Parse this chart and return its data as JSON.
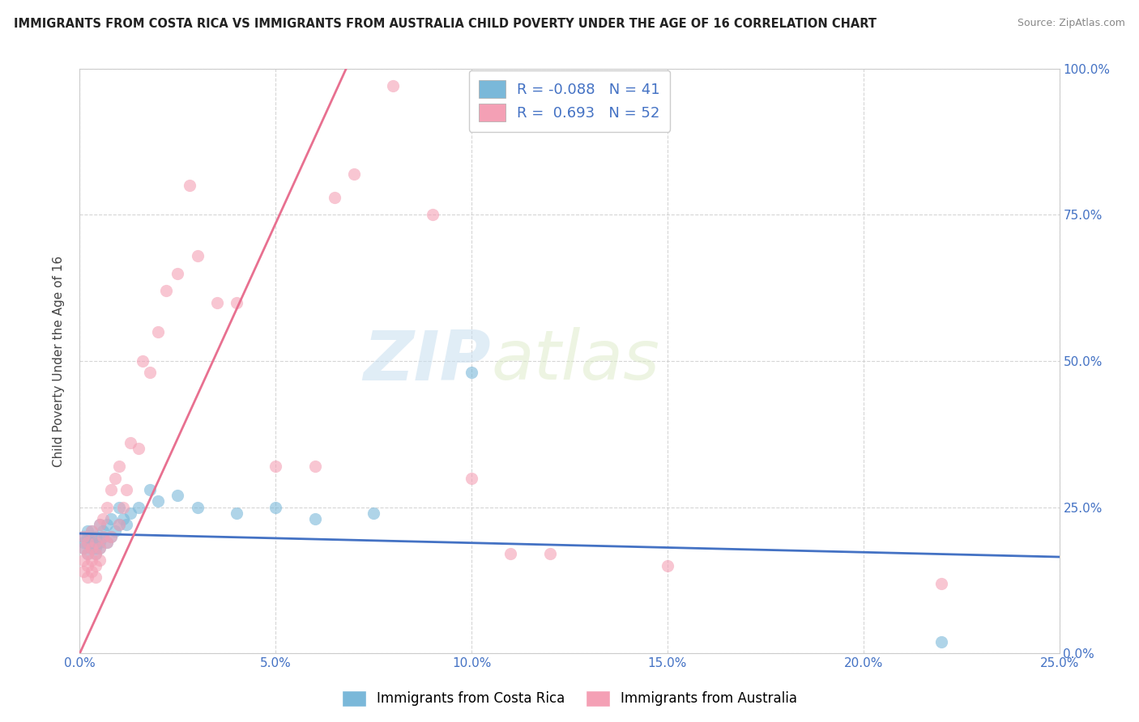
{
  "title": "IMMIGRANTS FROM COSTA RICA VS IMMIGRANTS FROM AUSTRALIA CHILD POVERTY UNDER THE AGE OF 16 CORRELATION CHART",
  "source": "Source: ZipAtlas.com",
  "ylabel": "Child Poverty Under the Age of 16",
  "xlim": [
    0.0,
    0.25
  ],
  "ylim": [
    0.0,
    1.0
  ],
  "xticks": [
    0.0,
    0.05,
    0.1,
    0.15,
    0.2,
    0.25
  ],
  "yticks": [
    0.0,
    0.25,
    0.5,
    0.75,
    1.0
  ],
  "costa_rica_color": "#7ab8d9",
  "australia_color": "#f4a0b5",
  "costa_rica_line_color": "#4472c4",
  "australia_line_color": "#e87090",
  "costa_rica_R": -0.088,
  "costa_rica_N": 41,
  "australia_R": 0.693,
  "australia_N": 52,
  "legend_label_costa_rica": "Immigrants from Costa Rica",
  "legend_label_australia": "Immigrants from Australia",
  "watermark_zip": "ZIP",
  "watermark_atlas": "atlas",
  "background_color": "#ffffff",
  "cr_trend_x0": 0.0,
  "cr_trend_y0": 0.205,
  "cr_trend_x1": 0.25,
  "cr_trend_y1": 0.165,
  "au_trend_x0": 0.0,
  "au_trend_y0": 0.0,
  "au_trend_x1": 0.068,
  "au_trend_y1": 1.0,
  "costa_rica_x": [
    0.001,
    0.001,
    0.001,
    0.002,
    0.002,
    0.002,
    0.002,
    0.003,
    0.003,
    0.003,
    0.003,
    0.004,
    0.004,
    0.004,
    0.004,
    0.005,
    0.005,
    0.005,
    0.006,
    0.006,
    0.007,
    0.007,
    0.008,
    0.008,
    0.009,
    0.01,
    0.01,
    0.011,
    0.012,
    0.013,
    0.015,
    0.018,
    0.02,
    0.025,
    0.03,
    0.04,
    0.05,
    0.06,
    0.075,
    0.1,
    0.22
  ],
  "costa_rica_y": [
    0.18,
    0.19,
    0.2,
    0.17,
    0.19,
    0.2,
    0.21,
    0.18,
    0.19,
    0.2,
    0.21,
    0.17,
    0.18,
    0.19,
    0.2,
    0.18,
    0.19,
    0.22,
    0.2,
    0.21,
    0.19,
    0.22,
    0.2,
    0.23,
    0.21,
    0.22,
    0.25,
    0.23,
    0.22,
    0.24,
    0.25,
    0.28,
    0.26,
    0.27,
    0.25,
    0.24,
    0.25,
    0.23,
    0.24,
    0.48,
    0.02
  ],
  "australia_x": [
    0.001,
    0.001,
    0.001,
    0.001,
    0.002,
    0.002,
    0.002,
    0.002,
    0.003,
    0.003,
    0.003,
    0.003,
    0.004,
    0.004,
    0.004,
    0.004,
    0.005,
    0.005,
    0.005,
    0.006,
    0.006,
    0.007,
    0.007,
    0.008,
    0.008,
    0.009,
    0.01,
    0.01,
    0.011,
    0.012,
    0.013,
    0.015,
    0.016,
    0.018,
    0.02,
    0.022,
    0.025,
    0.028,
    0.03,
    0.035,
    0.04,
    0.05,
    0.06,
    0.065,
    0.07,
    0.08,
    0.09,
    0.1,
    0.11,
    0.12,
    0.15,
    0.22
  ],
  "australia_y": [
    0.14,
    0.16,
    0.18,
    0.2,
    0.13,
    0.15,
    0.17,
    0.19,
    0.14,
    0.16,
    0.18,
    0.21,
    0.13,
    0.15,
    0.17,
    0.19,
    0.16,
    0.18,
    0.22,
    0.2,
    0.23,
    0.19,
    0.25,
    0.2,
    0.28,
    0.3,
    0.22,
    0.32,
    0.25,
    0.28,
    0.36,
    0.35,
    0.5,
    0.48,
    0.55,
    0.62,
    0.65,
    0.8,
    0.68,
    0.6,
    0.6,
    0.32,
    0.32,
    0.78,
    0.82,
    0.97,
    0.75,
    0.3,
    0.17,
    0.17,
    0.15,
    0.12
  ]
}
